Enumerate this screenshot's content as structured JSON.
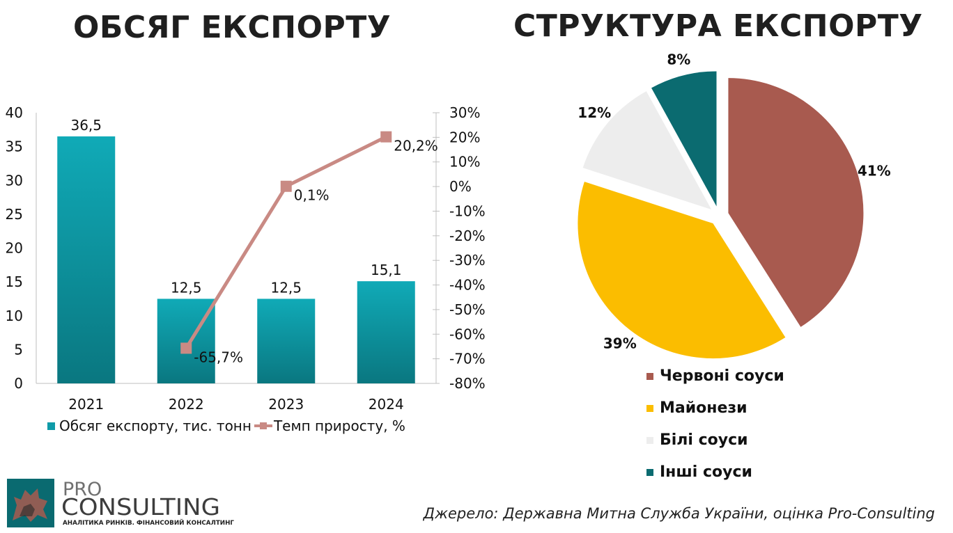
{
  "titles": {
    "left": "ОБСЯГ ЕКСПОРТУ",
    "right": "СТРУКТУРА ЕКСПОРТУ"
  },
  "chart_data": [
    {
      "type": "bar",
      "title": "ОБСЯГ ЕКСПОРТУ",
      "categories": [
        "2021",
        "2022",
        "2023",
        "2024"
      ],
      "series": [
        {
          "name": "Обсяг експорту, тис. тонн",
          "values": [
            36.5,
            12.5,
            12.5,
            15.1
          ],
          "labels": [
            "36,5",
            "12,5",
            "12,5",
            "15,1"
          ],
          "color": "#0f9ba8",
          "axis": "left"
        },
        {
          "name": "Темп приросту, %",
          "type": "line",
          "values": [
            null,
            -65.7,
            0.1,
            20.2
          ],
          "labels": [
            null,
            "-65,7%",
            "0,1%",
            "20,2%"
          ],
          "color": "#c98a84",
          "axis": "right"
        }
      ],
      "ylim": [
        0,
        40
      ],
      "yticks": [
        "0",
        "5",
        "10",
        "15",
        "20",
        "25",
        "30",
        "35",
        "40"
      ],
      "y2lim": [
        -80,
        30
      ],
      "y2ticks": [
        "-80%",
        "-70%",
        "-60%",
        "-50%",
        "-40%",
        "-30%",
        "-20%",
        "-10%",
        "0%",
        "10%",
        "20%",
        "30%"
      ],
      "legend": "bottom"
    },
    {
      "type": "pie",
      "title": "СТРУКТУРА ЕКСПОРТУ",
      "slices": [
        {
          "name": "Червоні соуси",
          "value": 41,
          "label": "41%",
          "color": "#a85a4f"
        },
        {
          "name": "Майонези",
          "value": 39,
          "label": "39%",
          "color": "#fbbd00"
        },
        {
          "name": "Білі соуси",
          "value": 12,
          "label": "12%",
          "color": "#ededed"
        },
        {
          "name": "Інші соуси",
          "value": 8,
          "label": "8%",
          "color": "#0b6b70"
        }
      ],
      "legend": "bottom-right"
    }
  ],
  "logo": {
    "line1": "PRO",
    "line2": "CONSULTING",
    "tagline": "АНАЛІТИКА РИНКІВ. ФІНАНСОВИЙ КОНСАЛТИНГ"
  },
  "source": "Джерело:  Державна Митна Служба України, оцінка Pro-Consulting"
}
